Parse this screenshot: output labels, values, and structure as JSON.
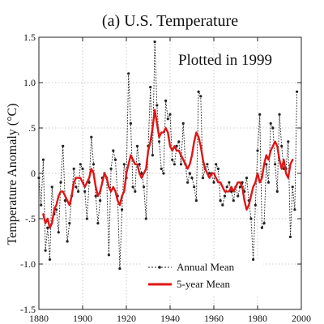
{
  "chart_data": {
    "type": "line",
    "title": "(a)  U.S. Temperature",
    "annotation": "Plotted in 1999",
    "ylabel": "Temperature Anomaly (°C)",
    "xlabel": "",
    "xlim": [
      1880,
      2000
    ],
    "ylim": [
      -1.5,
      1.5
    ],
    "xticks": [
      1880,
      1900,
      1920,
      1940,
      1960,
      1980,
      2000
    ],
    "xtick_labels": [
      "1880",
      "1900",
      "1920",
      "1940",
      "1960",
      "1980",
      "2000"
    ],
    "yticks": [
      -1.5,
      -1.0,
      -0.5,
      0.0,
      0.5,
      1.0,
      1.5
    ],
    "ytick_labels": [
      "-1.5",
      "-1.0",
      "-.5",
      "0",
      ".5",
      "1.0",
      "1.5"
    ],
    "grid": true,
    "legend_position": "bottom-center",
    "series": [
      {
        "name": "Annual Mean",
        "style": "dotted-line-with-markers",
        "color": "#222222",
        "x": [
          1880,
          1881,
          1882,
          1883,
          1884,
          1885,
          1886,
          1887,
          1888,
          1889,
          1890,
          1891,
          1892,
          1893,
          1894,
          1895,
          1896,
          1897,
          1898,
          1899,
          1900,
          1901,
          1902,
          1903,
          1904,
          1905,
          1906,
          1907,
          1908,
          1909,
          1910,
          1911,
          1912,
          1913,
          1914,
          1915,
          1916,
          1917,
          1918,
          1919,
          1920,
          1921,
          1922,
          1923,
          1924,
          1925,
          1926,
          1927,
          1928,
          1929,
          1930,
          1931,
          1932,
          1933,
          1934,
          1935,
          1936,
          1937,
          1938,
          1939,
          1940,
          1941,
          1942,
          1943,
          1944,
          1945,
          1946,
          1947,
          1948,
          1949,
          1950,
          1951,
          1952,
          1953,
          1954,
          1955,
          1956,
          1957,
          1958,
          1959,
          1960,
          1961,
          1962,
          1963,
          1964,
          1965,
          1966,
          1967,
          1968,
          1969,
          1970,
          1971,
          1972,
          1973,
          1974,
          1975,
          1976,
          1977,
          1978,
          1979,
          1980,
          1981,
          1982,
          1983,
          1984,
          1985,
          1986,
          1987,
          1988,
          1989,
          1990,
          1991,
          1992,
          1993,
          1994,
          1995,
          1996,
          1997,
          1998
        ],
        "values": [
          -0.05,
          -0.35,
          0.15,
          -0.85,
          -0.6,
          -0.95,
          -0.15,
          -0.45,
          -0.4,
          -0.65,
          -0.1,
          0.3,
          -0.3,
          -0.75,
          -0.55,
          -0.25,
          0.05,
          -0.15,
          -0.2,
          0.1,
          0.05,
          -0.2,
          -0.5,
          -0.1,
          0.4,
          0.1,
          -0.25,
          -0.55,
          -0.3,
          -0.05,
          0.0,
          -0.05,
          -0.9,
          0.05,
          0.25,
          0.15,
          -0.25,
          -1.05,
          -0.4,
          0.1,
          -0.05,
          1.1,
          0.55,
          -0.15,
          -0.2,
          0.3,
          0.1,
          0.0,
          -0.15,
          -0.5,
          0.3,
          0.95,
          0.2,
          1.45,
          0.75,
          0.35,
          0.05,
          0.0,
          0.8,
          0.6,
          0.65,
          0.15,
          0.1,
          0.3,
          0.35,
          0.1,
          0.55,
          0.1,
          -0.1,
          0.0,
          -0.05,
          -0.15,
          -0.3,
          0.9,
          0.85,
          -0.05,
          0.05,
          0.1,
          0.0,
          0.0,
          -0.1,
          0.1,
          0.05,
          -0.3,
          -0.35,
          -0.25,
          -0.15,
          -0.1,
          -0.2,
          -0.3,
          -0.15,
          -0.25,
          -0.15,
          -0.1,
          -0.2,
          -0.05,
          -0.3,
          -0.5,
          -0.95,
          -0.35,
          0.25,
          0.65,
          -0.6,
          -0.55,
          0.1,
          -0.1,
          0.55,
          0.5,
          0.1,
          -0.2,
          0.65,
          0.3,
          0.05,
          0.05,
          0.35,
          -0.7,
          -0.15,
          -0.4,
          0.9
        ]
      },
      {
        "name": "5-year Mean",
        "style": "solid",
        "color": "#e01515",
        "x": [
          1882,
          1883,
          1884,
          1885,
          1886,
          1887,
          1888,
          1889,
          1890,
          1891,
          1892,
          1893,
          1894,
          1895,
          1896,
          1897,
          1898,
          1899,
          1900,
          1901,
          1902,
          1903,
          1904,
          1905,
          1906,
          1907,
          1908,
          1909,
          1910,
          1911,
          1912,
          1913,
          1914,
          1915,
          1916,
          1917,
          1918,
          1919,
          1920,
          1921,
          1922,
          1923,
          1924,
          1925,
          1926,
          1927,
          1928,
          1929,
          1930,
          1931,
          1932,
          1933,
          1934,
          1935,
          1936,
          1937,
          1938,
          1939,
          1940,
          1941,
          1942,
          1943,
          1944,
          1945,
          1946,
          1947,
          1948,
          1949,
          1950,
          1951,
          1952,
          1953,
          1954,
          1955,
          1956,
          1957,
          1958,
          1959,
          1960,
          1961,
          1962,
          1963,
          1964,
          1965,
          1966,
          1967,
          1968,
          1969,
          1970,
          1971,
          1972,
          1973,
          1974,
          1975,
          1976,
          1977,
          1978,
          1979,
          1980,
          1981,
          1982,
          1983,
          1984,
          1985,
          1986,
          1987,
          1988,
          1989,
          1990,
          1991,
          1992,
          1993,
          1994,
          1995,
          1996
        ],
        "values": [
          -0.45,
          -0.55,
          -0.5,
          -0.6,
          -0.55,
          -0.4,
          -0.35,
          -0.25,
          -0.2,
          -0.2,
          -0.25,
          -0.3,
          -0.35,
          -0.25,
          -0.1,
          -0.05,
          -0.05,
          -0.05,
          -0.1,
          -0.15,
          -0.1,
          -0.05,
          0.05,
          0.0,
          -0.15,
          -0.25,
          -0.2,
          -0.1,
          0.0,
          -0.05,
          -0.15,
          -0.2,
          -0.15,
          -0.2,
          -0.3,
          -0.35,
          -0.25,
          -0.2,
          0.0,
          0.1,
          0.2,
          0.15,
          0.1,
          0.1,
          0.0,
          -0.05,
          0.0,
          0.05,
          0.25,
          0.35,
          0.5,
          0.7,
          0.55,
          0.4,
          0.45,
          0.45,
          0.5,
          0.45,
          0.3,
          0.25,
          0.3,
          0.25,
          0.25,
          0.2,
          0.15,
          0.1,
          0.05,
          0.1,
          0.2,
          0.35,
          0.45,
          0.4,
          0.3,
          0.15,
          0.05,
          0.0,
          -0.05,
          0.0,
          0.0,
          -0.05,
          -0.1,
          -0.1,
          -0.15,
          -0.2,
          -0.2,
          -0.2,
          -0.15,
          -0.2,
          -0.15,
          -0.1,
          -0.1,
          -0.15,
          -0.3,
          -0.4,
          -0.35,
          -0.25,
          -0.15,
          -0.1,
          0.0,
          -0.1,
          -0.05,
          0.1,
          0.2,
          0.15,
          0.25,
          0.3,
          0.35,
          0.3,
          0.15,
          0.05,
          0.15,
          0.0,
          -0.05,
          0.1,
          0.15
        ]
      }
    ]
  }
}
